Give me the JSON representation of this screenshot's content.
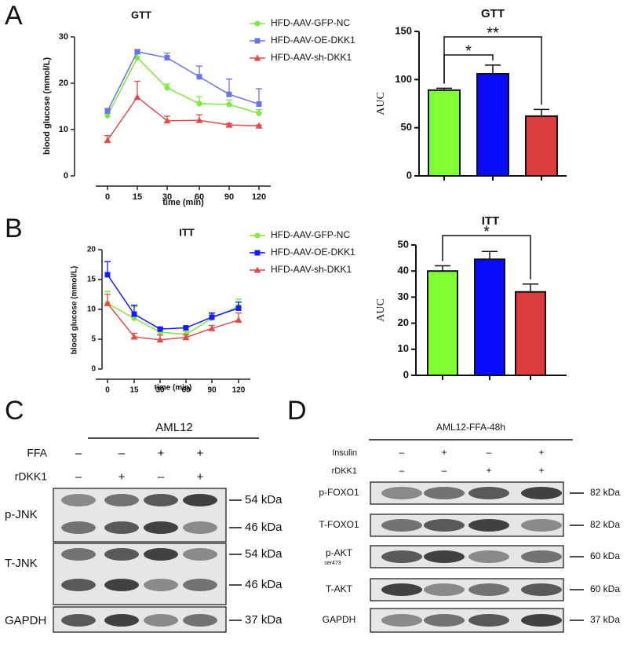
{
  "panel_labels": [
    "A",
    "B",
    "C",
    "D"
  ],
  "chart_data": [
    {
      "type": "line",
      "title": "GTT",
      "x_label": "time (min)",
      "y_label": "blood glucose  (mmol/L)",
      "categories": [
        "0",
        "15",
        "30",
        "60",
        "90",
        "120"
      ],
      "ylim": [
        0,
        30
      ],
      "yticks": [
        0,
        10,
        20,
        30
      ],
      "series": [
        {
          "name": "HFD-AAV-GFP-NC",
          "color": "#7ee83b",
          "marker": "circle",
          "values": [
            13,
            25.5,
            19,
            15.6,
            15.4,
            13.5
          ],
          "errors": [
            0.5,
            0.8,
            0.8,
            1.5,
            1,
            0.8
          ]
        },
        {
          "name": "HFD-AAV-OE-DKK1",
          "color": "#6b73e8",
          "marker": "square",
          "values": [
            14,
            26.8,
            25.5,
            21.4,
            17.6,
            15.5
          ],
          "errors": [
            0.5,
            0.4,
            1,
            2.3,
            3.3,
            3.3
          ]
        },
        {
          "name": "HFD-AAV-sh-DKK1",
          "color": "#e34a4a",
          "marker": "triangle",
          "values": [
            7.7,
            17,
            11.9,
            12,
            11,
            10.8
          ],
          "errors": [
            1,
            3.4,
            1,
            1.2,
            0.3,
            0.2
          ]
        }
      ]
    },
    {
      "type": "bar",
      "title": "GTT",
      "y_label": "AUC",
      "ylim": [
        0,
        150
      ],
      "yticks": [
        0,
        50,
        100,
        150
      ],
      "values": [
        89,
        106,
        62
      ],
      "errors": [
        2,
        9,
        7
      ],
      "colors": [
        "#80ff33",
        "#0a0aff",
        "#dc3c3c"
      ],
      "annotations": [
        "*",
        "**"
      ]
    },
    {
      "type": "line",
      "title": "ITT",
      "x_label": "time (min)",
      "y_label": "blood glucose  (mmol/L)",
      "categories": [
        "0",
        "15",
        "30",
        "60",
        "90",
        "120"
      ],
      "ylim": [
        0,
        20
      ],
      "yticks": [
        0,
        5,
        10,
        15,
        20
      ],
      "series": [
        {
          "name": "HFD-AAV-GFP-NC",
          "color": "#7ee83b",
          "marker": "circle",
          "values": [
            11,
            8.5,
            6.2,
            5.8,
            8.5,
            10.5
          ],
          "errors": [
            2,
            2,
            0.8,
            0.5,
            0.8,
            1.2
          ]
        },
        {
          "name": "HFD-AAV-OE-DKK1",
          "color": "#1a1aff",
          "marker": "square",
          "values": [
            15.8,
            9.2,
            6.7,
            6.9,
            8.7,
            10.2
          ],
          "errors": [
            2.2,
            1.5,
            0.2,
            0.2,
            0.7,
            1
          ]
        },
        {
          "name": "HFD-AAV-sh-DKK1",
          "color": "#e34a4a",
          "marker": "triangle",
          "values": [
            11,
            5.4,
            4.9,
            5.3,
            6.8,
            8.2
          ],
          "errors": [
            1.5,
            0.6,
            0.8,
            0.5,
            0.5,
            1.2
          ]
        }
      ]
    },
    {
      "type": "bar",
      "title": "ITT",
      "y_label": "AUC",
      "ylim": [
        0,
        50
      ],
      "yticks": [
        0,
        10,
        20,
        30,
        40,
        50
      ],
      "values": [
        40,
        44.5,
        32
      ],
      "errors": [
        2,
        3,
        3
      ],
      "colors": [
        "#80ff33",
        "#0a0aff",
        "#dc3c3c"
      ],
      "annotations": [
        "*"
      ]
    }
  ],
  "blots": [
    {
      "title": "AML12",
      "conditions": [
        {
          "name": "FFA",
          "signs": [
            "–",
            "–",
            "+",
            "+"
          ]
        },
        {
          "name": "rDKK1",
          "signs": [
            "–",
            "+",
            "–",
            "+"
          ]
        }
      ],
      "rows": [
        {
          "name": "p-JNK",
          "sizes": [
            "54 kDa",
            "46 kDa"
          ]
        },
        {
          "name": "T-JNK",
          "sizes": [
            "54 kDa",
            "46 kDa"
          ]
        },
        {
          "name": "GAPDH",
          "sizes": [
            "37 kDa"
          ]
        }
      ]
    },
    {
      "title": "AML12-FFA-48h",
      "conditions": [
        {
          "name": "Insulin",
          "signs": [
            "–",
            "+",
            "–",
            "+"
          ]
        },
        {
          "name": "rDKK1",
          "signs": [
            "–",
            "–",
            "+",
            "+"
          ]
        }
      ],
      "rows": [
        {
          "name": "p-FOXO1",
          "sizes": [
            "82 kDa"
          ]
        },
        {
          "name": "T-FOXO1",
          "sizes": [
            "82 kDa"
          ]
        },
        {
          "name": "p-AKT",
          "subscript": "ser473",
          "sizes": [
            "60 kDa"
          ]
        },
        {
          "name": "T-AKT",
          "sizes": [
            "60 kDa"
          ]
        },
        {
          "name": "GAPDH",
          "sizes": [
            "37 kDa"
          ]
        }
      ]
    }
  ]
}
